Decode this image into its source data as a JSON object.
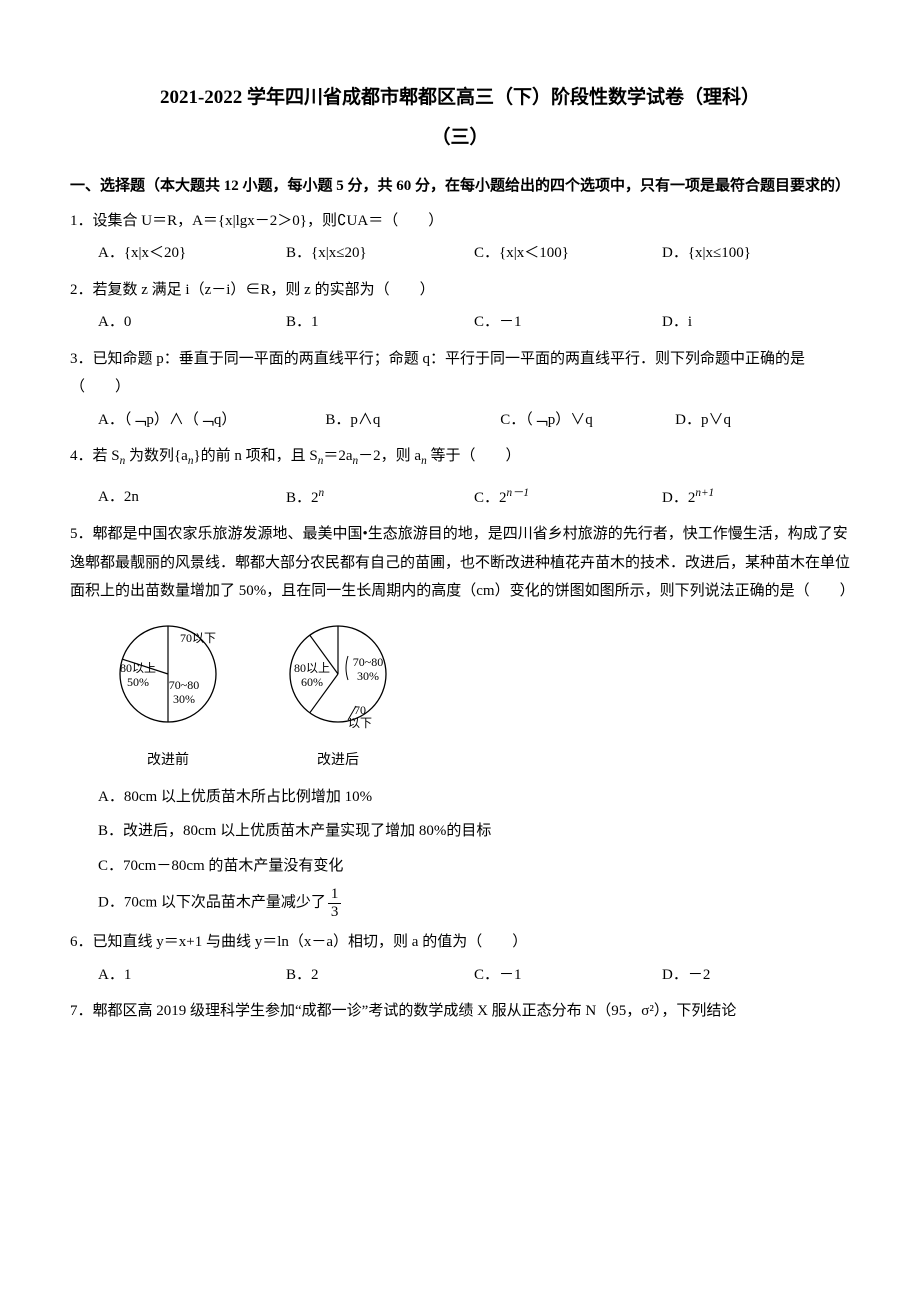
{
  "title_line1": "2021-2022 学年四川省成都市郫都区高三（下）阶段性数学试卷（理科）",
  "title_line2": "（三）",
  "section_head": "一、选择题（本大题共 12 小题，每小题 5 分，共 60 分，在每小题给出的四个选项中，只有一项是最符合题目要求的）",
  "q1": {
    "stem": "1．设集合 U＝R，A＝{x|lgx－2＞0}，则∁UA＝（　　）",
    "A": "A．{x|x＜20}",
    "B": "B．{x|x≤20}",
    "C": "C．{x|x＜100}",
    "D": "D．{x|x≤100}"
  },
  "q2": {
    "stem": "2．若复数 z 满足 i（z－i）∈R，则 z 的实部为（　　）",
    "A": "A．0",
    "B": "B．1",
    "C": "C．－1",
    "D": "D．i"
  },
  "q3": {
    "stem": "3．已知命题 p：垂直于同一平面的两直线平行；命题 q：平行于同一平面的两直线平行．则下列命题中正确的是（　　）",
    "A": "A．（﹁p）∧（﹁q）",
    "B": "B．p∧q",
    "C": "C．（﹁p）∨q",
    "D": "D．p∨q"
  },
  "q4": {
    "stem_prefix": "4．若 S",
    "stem_mid1": " 为数列{a",
    "stem_mid2": "}的前 n 项和，且 S",
    "stem_mid3": "＝2a",
    "stem_mid4": "－2，则 a",
    "stem_suffix": " 等于（　　）",
    "A": "A．2n",
    "B_pre": "B．2",
    "B_sup": "n",
    "C_pre": "C．2",
    "C_sup": "n－1",
    "D_pre": "D．2",
    "D_sup": "n+1"
  },
  "q5": {
    "stem": "5．郫都是中国农家乐旅游发源地、最美中国•生态旅游目的地，是四川省乡村旅游的先行者，快工作慢生活，构成了安逸郫都最靓丽的风景线．郫都大部分农民都有自己的苗圃，也不断改进种植花卉苗木的技术．改进后，某种苗木在单位面积上的出苗数量增加了 50%，且在同一生长周期内的高度（cm）变化的饼图如图所示，则下列说法正确的是（　　）",
    "pie_before": {
      "caption": "改进前",
      "slices": [
        {
          "label": "80以上",
          "pct": "50%",
          "value": 50,
          "color": "#ffffff"
        },
        {
          "label": "70~80",
          "pct": "30%",
          "value": 30,
          "color": "#ffffff"
        },
        {
          "label": "70以下",
          "pct": "",
          "value": 20,
          "color": "#ffffff"
        }
      ],
      "stroke": "#000000"
    },
    "pie_after": {
      "caption": "改进后",
      "slices": [
        {
          "label": "80以上",
          "pct": "60%",
          "value": 60,
          "color": "#ffffff"
        },
        {
          "label": "70~80",
          "pct": "30%",
          "value": 30,
          "color": "#ffffff"
        },
        {
          "label": "70以下",
          "pct": "",
          "value": 10,
          "color": "#ffffff"
        }
      ],
      "stroke": "#000000"
    },
    "A": "A．80cm 以上优质苗木所占比例增加 10%",
    "B": "B．改进后，80cm 以上优质苗木产量实现了增加 80%的目标",
    "C": "C．70cm－80cm 的苗木产量没有变化",
    "D_pre": "D．70cm 以下次品苗木产量减少了",
    "D_frac_num": "1",
    "D_frac_den": "3"
  },
  "q6": {
    "stem": "6．已知直线 y＝x+1 与曲线 y＝ln（x－a）相切，则 a 的值为（　　）",
    "A": "A．1",
    "B": "B．2",
    "C": "C．－1",
    "D": "D．－2"
  },
  "q7": {
    "stem": "7．郫都区高 2019 级理科学生参加“成都一诊”考试的数学成绩 X 服从正态分布 N（95，σ²），下列结论"
  }
}
